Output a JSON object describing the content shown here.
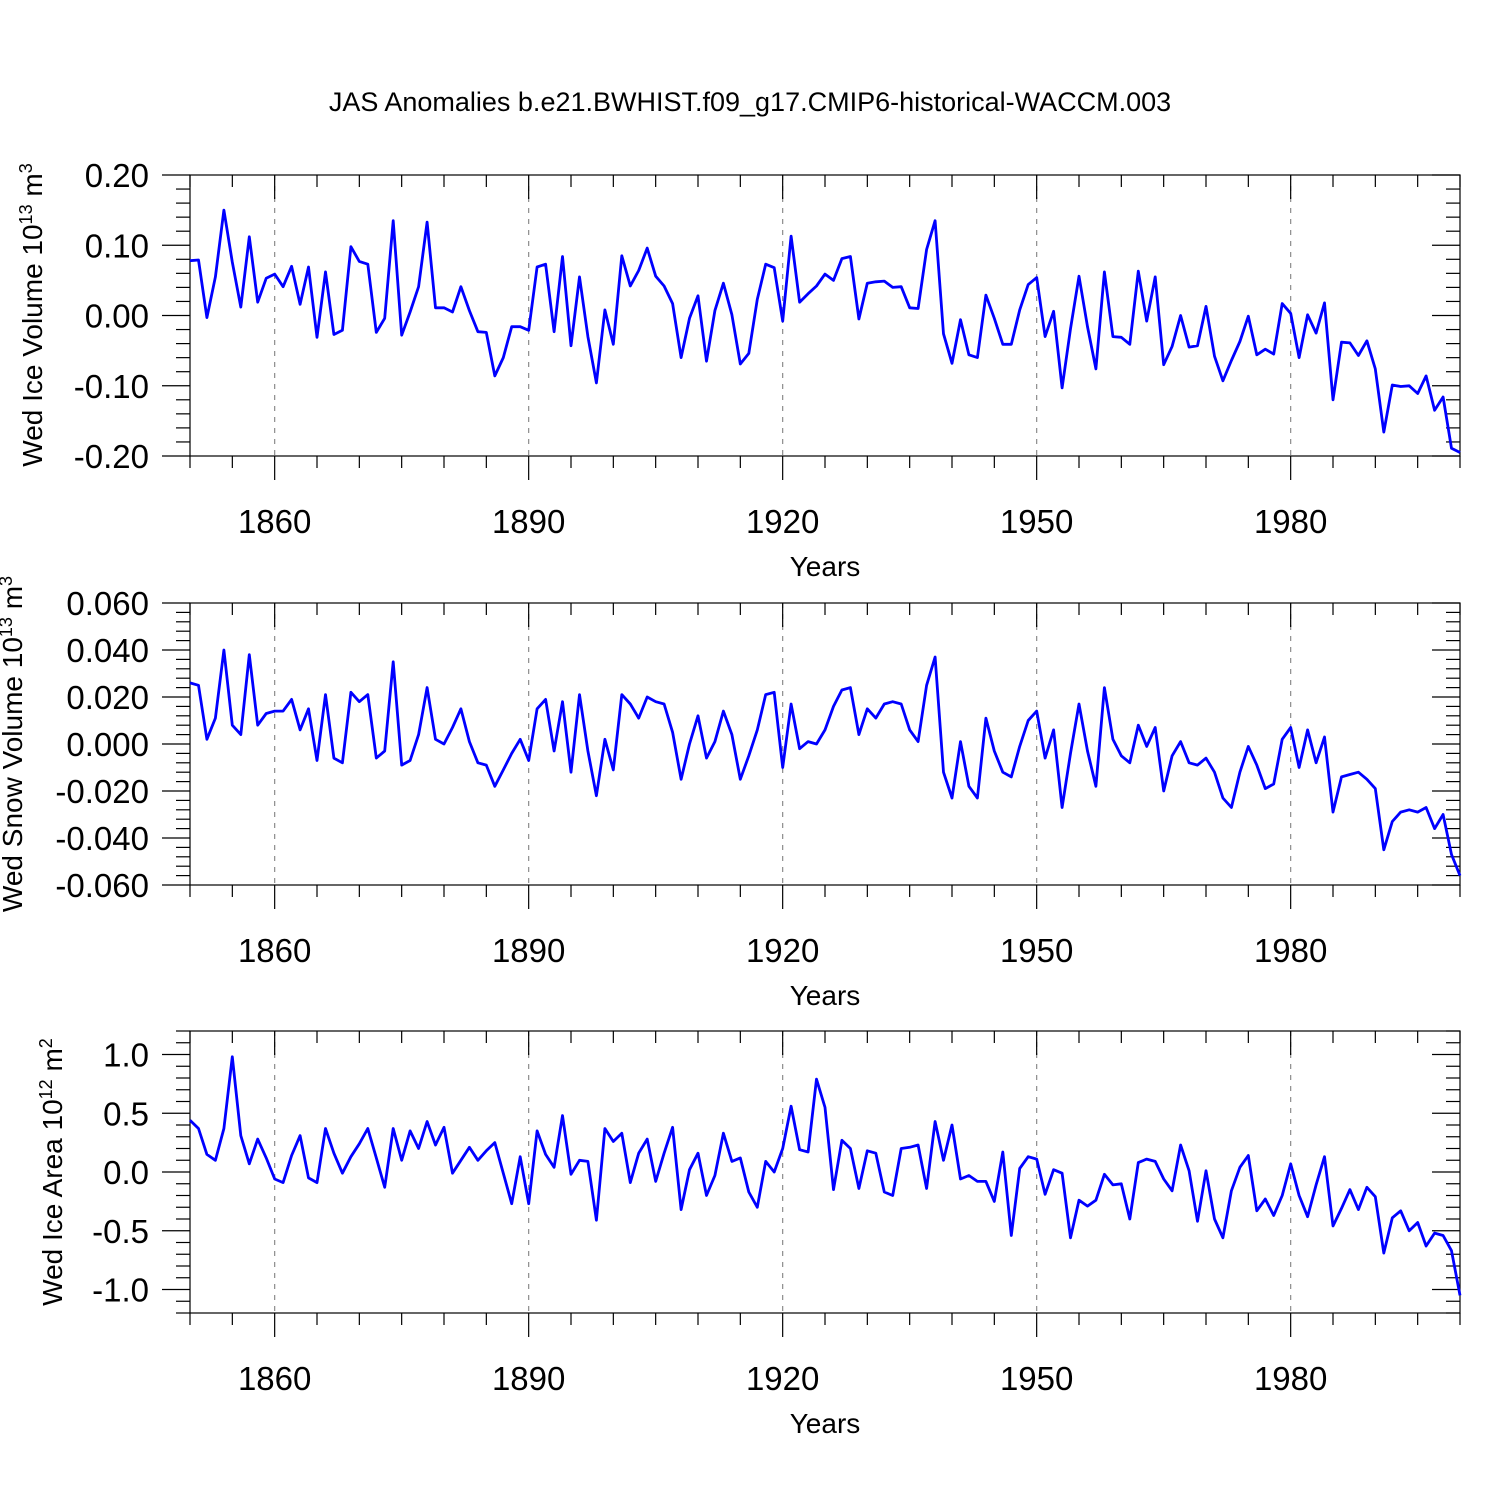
{
  "title": "JAS Anomalies b.e21.BWHIST.f09_g17.CMIP6-historical-WACCM.003",
  "chart_data": [
    {
      "type": "line",
      "name": "ice-volume",
      "title": "JAS Anomalies b.e21.BWHIST.f09_g17.CMIP6-historical-WACCM.003",
      "xlabel": "Years",
      "ylabel": "Wed Ice Volume 10",
      "ylabel_sup": "13",
      "ylabel_unit": " m",
      "ylabel_unit_sup": "3",
      "xlim": [
        1850,
        2000
      ],
      "ylim": [
        -0.2,
        0.2
      ],
      "x_ticks": [
        1860,
        1890,
        1920,
        1950,
        1980
      ],
      "x_tick_labels": [
        "1860",
        "1890",
        "1920",
        "1950",
        "1980"
      ],
      "y_ticks": [
        -0.2,
        -0.1,
        0.0,
        0.1,
        0.2
      ],
      "y_tick_labels": [
        "-0.20",
        "-0.10",
        "0.00",
        "0.10",
        "0.20"
      ],
      "color": "#0000ff",
      "x_start": 1850,
      "values": [
        0.078,
        0.079,
        -0.003,
        0.055,
        0.15,
        0.076,
        0.012,
        0.112,
        0.019,
        0.053,
        0.059,
        0.041,
        0.07,
        0.016,
        0.069,
        -0.031,
        0.062,
        -0.027,
        -0.021,
        0.098,
        0.077,
        0.073,
        -0.024,
        -0.004,
        0.135,
        -0.028,
        0.005,
        0.041,
        0.133,
        0.011,
        0.011,
        0.005,
        0.041,
        0.007,
        -0.023,
        -0.024,
        -0.086,
        -0.06,
        -0.016,
        -0.016,
        -0.021,
        0.069,
        0.073,
        -0.023,
        0.084,
        -0.043,
        0.055,
        -0.03,
        -0.096,
        0.008,
        -0.041,
        0.085,
        0.042,
        0.064,
        0.096,
        0.056,
        0.042,
        0.017,
        -0.06,
        -0.004,
        0.028,
        -0.065,
        0.007,
        0.046,
        0.001,
        -0.069,
        -0.054,
        0.023,
        0.073,
        0.068,
        -0.008,
        0.113,
        0.019,
        0.031,
        0.042,
        0.059,
        0.05,
        0.081,
        0.084,
        -0.005,
        0.046,
        0.048,
        0.049,
        0.04,
        0.041,
        0.011,
        0.01,
        0.094,
        0.135,
        -0.026,
        -0.068,
        -0.006,
        -0.056,
        -0.06,
        0.029,
        -0.004,
        -0.041,
        -0.041,
        0.008,
        0.044,
        0.054,
        -0.03,
        0.006,
        -0.103,
        -0.019,
        0.056,
        -0.016,
        -0.076,
        0.062,
        -0.03,
        -0.031,
        -0.041,
        0.063,
        -0.008,
        0.055,
        -0.07,
        -0.044,
        0.0,
        -0.045,
        -0.043,
        0.013,
        -0.058,
        -0.093,
        -0.064,
        -0.037,
        -0.001,
        -0.056,
        -0.048,
        -0.055,
        0.017,
        0.003,
        -0.06,
        0.001,
        -0.025,
        0.018,
        -0.12,
        -0.038,
        -0.039,
        -0.057,
        -0.036,
        -0.076,
        -0.166,
        -0.099,
        -0.101,
        -0.1,
        -0.111,
        -0.086,
        -0.135,
        -0.116,
        -0.189,
        -0.195
      ]
    },
    {
      "type": "line",
      "name": "snow-volume",
      "xlabel": "Years",
      "ylabel": "Wed Snow Volume 10",
      "ylabel_sup": "13",
      "ylabel_unit": " m",
      "ylabel_unit_sup": "3",
      "xlim": [
        1850,
        2000
      ],
      "ylim": [
        -0.06,
        0.06
      ],
      "x_ticks": [
        1860,
        1890,
        1920,
        1950,
        1980
      ],
      "x_tick_labels": [
        "1860",
        "1890",
        "1920",
        "1950",
        "1980"
      ],
      "y_ticks": [
        -0.06,
        -0.04,
        -0.02,
        0.0,
        0.02,
        0.04,
        0.06
      ],
      "y_tick_labels": [
        "-0.060",
        "-0.040",
        "-0.020",
        "0.000",
        "0.020",
        "0.040",
        "0.060"
      ],
      "color": "#0000ff",
      "x_start": 1850,
      "values": [
        0.026,
        0.025,
        0.002,
        0.011,
        0.04,
        0.008,
        0.004,
        0.038,
        0.008,
        0.013,
        0.014,
        0.014,
        0.019,
        0.006,
        0.015,
        -0.007,
        0.021,
        -0.006,
        -0.008,
        0.022,
        0.018,
        0.021,
        -0.006,
        -0.003,
        0.035,
        -0.009,
        -0.007,
        0.004,
        0.024,
        0.002,
        0.0,
        0.007,
        0.015,
        0.001,
        -0.008,
        -0.009,
        -0.018,
        -0.011,
        -0.004,
        0.002,
        -0.007,
        0.015,
        0.019,
        -0.003,
        0.018,
        -0.012,
        0.021,
        -0.003,
        -0.022,
        0.002,
        -0.011,
        0.021,
        0.017,
        0.011,
        0.02,
        0.018,
        0.017,
        0.005,
        -0.015,
        0.0,
        0.012,
        -0.006,
        0.001,
        0.014,
        0.004,
        -0.015,
        -0.005,
        0.006,
        0.021,
        0.022,
        -0.01,
        0.017,
        -0.002,
        0.001,
        0.0,
        0.006,
        0.016,
        0.023,
        0.024,
        0.004,
        0.015,
        0.011,
        0.017,
        0.018,
        0.017,
        0.006,
        0.001,
        0.025,
        0.037,
        -0.012,
        -0.023,
        0.001,
        -0.018,
        -0.023,
        0.011,
        -0.003,
        -0.012,
        -0.014,
        -0.001,
        0.01,
        0.014,
        -0.006,
        0.006,
        -0.027,
        -0.004,
        0.017,
        -0.003,
        -0.018,
        0.024,
        0.002,
        -0.005,
        -0.008,
        0.008,
        -0.001,
        0.007,
        -0.02,
        -0.005,
        0.001,
        -0.008,
        -0.009,
        -0.006,
        -0.012,
        -0.023,
        -0.027,
        -0.012,
        -0.001,
        -0.009,
        -0.019,
        -0.017,
        0.002,
        0.007,
        -0.01,
        0.006,
        -0.008,
        0.003,
        -0.029,
        -0.014,
        -0.013,
        -0.012,
        -0.015,
        -0.019,
        -0.045,
        -0.033,
        -0.029,
        -0.028,
        -0.029,
        -0.027,
        -0.036,
        -0.03,
        -0.047,
        -0.056
      ]
    },
    {
      "type": "line",
      "name": "ice-area",
      "xlabel": "Years",
      "ylabel": "Wed Ice Area 10",
      "ylabel_sup": "12",
      "ylabel_unit": " m",
      "ylabel_unit_sup": "2",
      "xlim": [
        1850,
        2000
      ],
      "ylim": [
        -1.2,
        1.2
      ],
      "x_ticks": [
        1860,
        1890,
        1920,
        1950,
        1980
      ],
      "x_tick_labels": [
        "1860",
        "1890",
        "1920",
        "1950",
        "1980"
      ],
      "y_ticks": [
        -1.0,
        -0.5,
        0.0,
        0.5,
        1.0
      ],
      "y_tick_labels": [
        "-1.0",
        "-0.5",
        "0.0",
        "0.5",
        "1.0"
      ],
      "color": "#0000ff",
      "x_start": 1850,
      "values": [
        0.44,
        0.37,
        0.15,
        0.1,
        0.37,
        0.98,
        0.31,
        0.07,
        0.28,
        0.12,
        -0.06,
        -0.09,
        0.14,
        0.31,
        -0.05,
        -0.09,
        0.37,
        0.16,
        -0.01,
        0.13,
        0.24,
        0.37,
        0.12,
        -0.13,
        0.37,
        0.1,
        0.35,
        0.2,
        0.43,
        0.23,
        0.38,
        -0.01,
        0.1,
        0.21,
        0.1,
        0.18,
        0.25,
        -0.01,
        -0.27,
        0.13,
        -0.27,
        0.35,
        0.15,
        0.04,
        0.48,
        -0.02,
        0.1,
        0.09,
        -0.41,
        0.37,
        0.26,
        0.33,
        -0.09,
        0.16,
        0.28,
        -0.08,
        0.16,
        0.38,
        -0.32,
        0.02,
        0.16,
        -0.2,
        -0.03,
        0.33,
        0.09,
        0.12,
        -0.17,
        -0.3,
        0.09,
        0.0,
        0.2,
        0.56,
        0.19,
        0.17,
        0.79,
        0.55,
        -0.15,
        0.27,
        0.2,
        -0.14,
        0.18,
        0.16,
        -0.17,
        -0.2,
        0.2,
        0.21,
        0.23,
        -0.14,
        0.43,
        0.1,
        0.4,
        -0.06,
        -0.03,
        -0.08,
        -0.08,
        -0.25,
        0.17,
        -0.54,
        0.03,
        0.13,
        0.11,
        -0.19,
        0.02,
        -0.01,
        -0.56,
        -0.24,
        -0.29,
        -0.24,
        -0.02,
        -0.11,
        -0.1,
        -0.4,
        0.08,
        0.11,
        0.09,
        -0.06,
        -0.16,
        0.23,
        0.01,
        -0.42,
        0.01,
        -0.4,
        -0.56,
        -0.16,
        0.04,
        0.14,
        -0.33,
        -0.23,
        -0.37,
        -0.2,
        0.07,
        -0.2,
        -0.38,
        -0.11,
        0.13,
        -0.46,
        -0.31,
        -0.15,
        -0.32,
        -0.13,
        -0.21,
        -0.69,
        -0.39,
        -0.33,
        -0.5,
        -0.43,
        -0.63,
        -0.52,
        -0.54,
        -0.67,
        -1.05
      ]
    }
  ]
}
